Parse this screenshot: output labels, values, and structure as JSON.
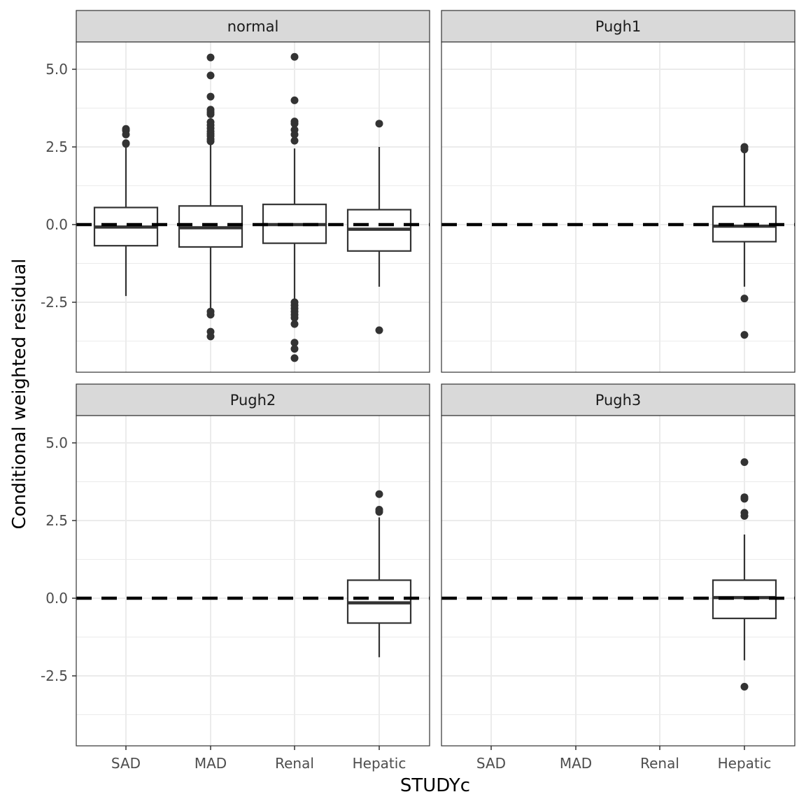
{
  "chart_data": {
    "type": "boxplot",
    "title": "",
    "xlabel": "STUDYc",
    "ylabel": "Conditional weighted residual",
    "categories": [
      "SAD",
      "MAD",
      "Renal",
      "Hepatic"
    ],
    "ylim": [
      -4.5,
      6.0
    ],
    "yticks": [
      -2.5,
      0.0,
      2.5,
      5.0
    ],
    "ytick_labels": [
      "-2.5",
      "0.0",
      "2.5",
      "5.0"
    ],
    "reference_line": 0,
    "panels": [
      {
        "name": "normal",
        "boxes": [
          {
            "category": "SAD",
            "q1": -0.68,
            "median": -0.08,
            "q3": 0.55,
            "whisker_low": -2.3,
            "whisker_high": 2.5,
            "outliers": [
              3.08,
              3.03,
              2.9,
              2.62,
              2.6
            ]
          },
          {
            "category": "MAD",
            "q1": -0.72,
            "median": -0.1,
            "q3": 0.6,
            "whisker_low": -2.7,
            "whisker_high": 2.6,
            "outliers": [
              5.38,
              4.8,
              4.12,
              3.7,
              3.62,
              3.55,
              3.3,
              3.2,
              3.1,
              3.0,
              2.92,
              2.85,
              2.75,
              2.68,
              -2.8,
              -2.9,
              -3.45,
              -3.6
            ]
          },
          {
            "category": "Renal",
            "q1": -0.6,
            "median": 0.0,
            "q3": 0.65,
            "whisker_low": -2.45,
            "whisker_high": 2.45,
            "outliers": [
              5.4,
              4.0,
              3.32,
              3.25,
              3.05,
              2.9,
              2.7,
              -2.5,
              -2.6,
              -2.7,
              -2.8,
              -2.9,
              -3.0,
              -3.2,
              -3.8,
              -4.0,
              -4.3
            ]
          },
          {
            "category": "Hepatic",
            "q1": -0.85,
            "median": -0.15,
            "q3": 0.48,
            "whisker_low": -2.0,
            "whisker_high": 2.5,
            "outliers": [
              3.25,
              -3.4
            ]
          }
        ]
      },
      {
        "name": "Pugh1",
        "boxes": [
          {
            "category": "Hepatic",
            "q1": -0.55,
            "median": -0.05,
            "q3": 0.58,
            "whisker_low": -2.0,
            "whisker_high": 2.35,
            "outliers": [
              2.5,
              2.42,
              -2.38,
              -3.55
            ]
          }
        ]
      },
      {
        "name": "Pugh2",
        "boxes": [
          {
            "category": "Hepatic",
            "q1": -0.8,
            "median": -0.15,
            "q3": 0.58,
            "whisker_low": -1.9,
            "whisker_high": 2.6,
            "outliers": [
              3.35,
              2.85,
              2.78
            ]
          }
        ]
      },
      {
        "name": "Pugh3",
        "boxes": [
          {
            "category": "Hepatic",
            "q1": -0.65,
            "median": 0.02,
            "q3": 0.58,
            "whisker_low": -2.0,
            "whisker_high": 2.05,
            "outliers": [
              4.38,
              3.25,
              3.2,
              2.75,
              2.65,
              -2.85
            ]
          }
        ]
      }
    ]
  }
}
